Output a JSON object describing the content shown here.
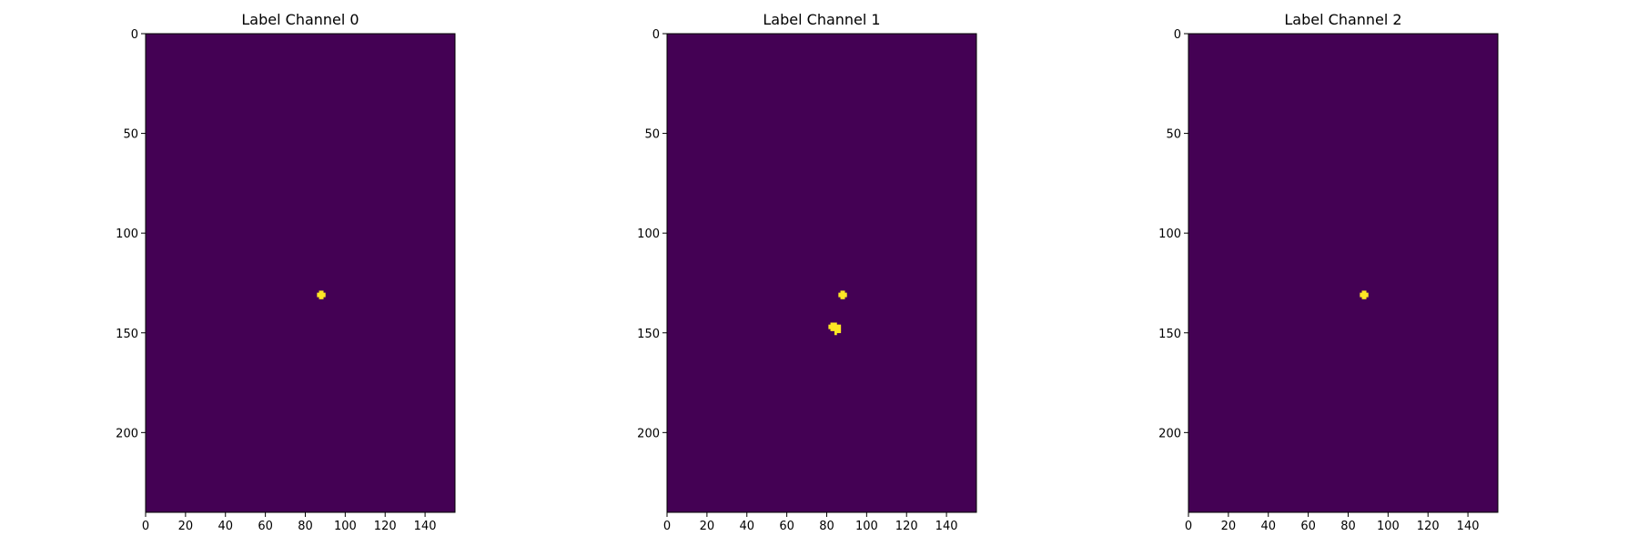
{
  "chart_data": [
    {
      "type": "heatmap",
      "title": "Label Channel 0",
      "xlim": [
        0,
        155
      ],
      "ylim": [
        240,
        0
      ],
      "x_ticks": [
        0,
        20,
        40,
        60,
        80,
        100,
        120,
        140
      ],
      "y_ticks": [
        0,
        50,
        100,
        150,
        200
      ],
      "background_value": 0,
      "blobs": [
        {
          "value": 1,
          "pixels": [
            [
              87,
              129
            ],
            [
              88,
              129
            ],
            [
              86,
              130
            ],
            [
              87,
              130
            ],
            [
              88,
              130
            ],
            [
              89,
              130
            ],
            [
              86,
              131
            ],
            [
              87,
              131
            ],
            [
              88,
              131
            ],
            [
              89,
              131
            ],
            [
              87,
              132
            ],
            [
              88,
              132
            ]
          ]
        }
      ]
    },
    {
      "type": "heatmap",
      "title": "Label Channel 1",
      "xlim": [
        0,
        155
      ],
      "ylim": [
        240,
        0
      ],
      "x_ticks": [
        0,
        20,
        40,
        60,
        80,
        100,
        120,
        140
      ],
      "y_ticks": [
        0,
        50,
        100,
        150,
        200
      ],
      "background_value": 0,
      "blobs": [
        {
          "value": 1,
          "pixels": [
            [
              87,
              129
            ],
            [
              88,
              129
            ],
            [
              86,
              130
            ],
            [
              87,
              130
            ],
            [
              88,
              130
            ],
            [
              89,
              130
            ],
            [
              86,
              131
            ],
            [
              87,
              131
            ],
            [
              88,
              131
            ],
            [
              89,
              131
            ],
            [
              87,
              132
            ],
            [
              88,
              132
            ]
          ]
        },
        {
          "value": 1,
          "pixels": [
            [
              82,
              145
            ],
            [
              83,
              145
            ],
            [
              84,
              145
            ],
            [
              81,
              146
            ],
            [
              82,
              146
            ],
            [
              83,
              146
            ],
            [
              84,
              146
            ],
            [
              85,
              146
            ],
            [
              86,
              146
            ],
            [
              81,
              147
            ],
            [
              82,
              147
            ],
            [
              83,
              147
            ],
            [
              84,
              147
            ],
            [
              85,
              147
            ],
            [
              86,
              147
            ],
            [
              82,
              148
            ],
            [
              83,
              148
            ],
            [
              84,
              148
            ],
            [
              85,
              148
            ],
            [
              86,
              148
            ],
            [
              84,
              149
            ],
            [
              85,
              149
            ],
            [
              86,
              149
            ],
            [
              84,
              150
            ]
          ]
        }
      ]
    },
    {
      "type": "heatmap",
      "title": "Label Channel 2",
      "xlim": [
        0,
        155
      ],
      "ylim": [
        240,
        0
      ],
      "x_ticks": [
        0,
        20,
        40,
        60,
        80,
        100,
        120,
        140
      ],
      "y_ticks": [
        0,
        50,
        100,
        150,
        200
      ],
      "background_value": 0,
      "blobs": [
        {
          "value": 1,
          "pixels": [
            [
              87,
              129
            ],
            [
              88,
              129
            ],
            [
              86,
              130
            ],
            [
              87,
              130
            ],
            [
              88,
              130
            ],
            [
              89,
              130
            ],
            [
              86,
              131
            ],
            [
              87,
              131
            ],
            [
              88,
              131
            ],
            [
              89,
              131
            ],
            [
              87,
              132
            ],
            [
              88,
              132
            ]
          ]
        }
      ]
    }
  ],
  "colors": {
    "background": "#440154",
    "foreground": "#fde725",
    "axis": "#000000"
  }
}
